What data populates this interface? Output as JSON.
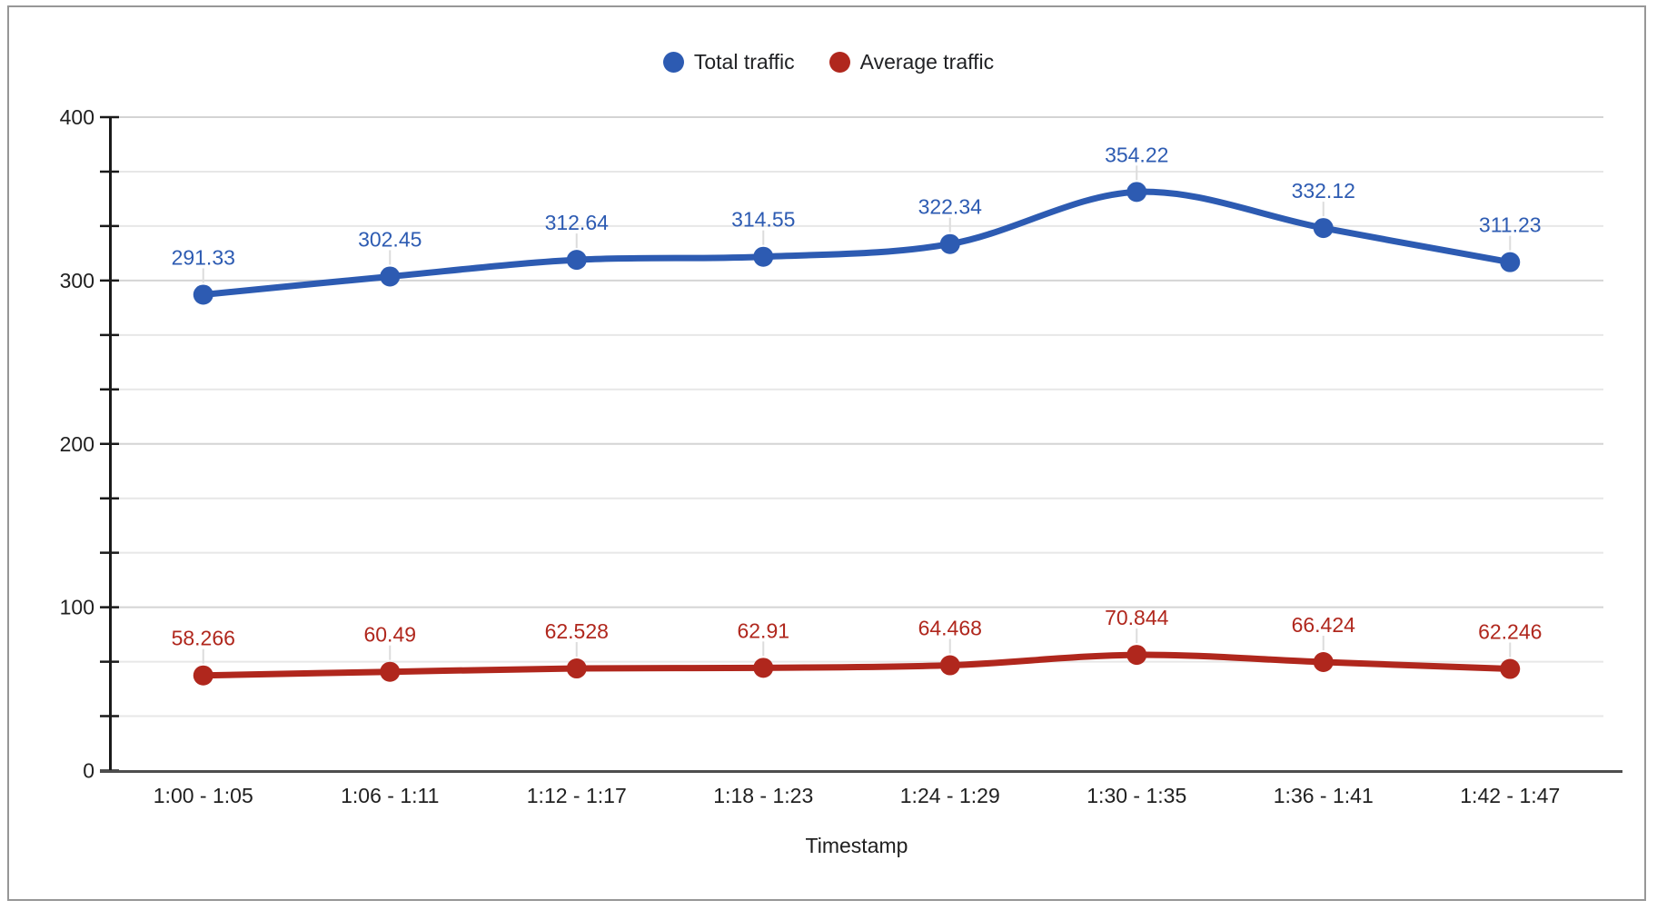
{
  "chart_data": {
    "type": "line",
    "title": "",
    "xlabel": "Timestamp",
    "ylabel": "",
    "categories": [
      "1:00 - 1:05",
      "1:06 - 1:11",
      "1:12 - 1:17",
      "1:18 - 1:23",
      "1:24 - 1:29",
      "1:30 - 1:35",
      "1:36 - 1:41",
      "1:42 - 1:47"
    ],
    "series": [
      {
        "name": "Total traffic",
        "color": "#2d5bb2",
        "values": [
          291.33,
          302.45,
          312.64,
          314.55,
          322.34,
          354.22,
          332.12,
          311.23
        ]
      },
      {
        "name": "Average traffic",
        "color": "#b0271d",
        "values": [
          58.266,
          60.49,
          62.528,
          62.91,
          64.468,
          70.844,
          66.424,
          62.246
        ]
      }
    ],
    "ylim": [
      0,
      400
    ],
    "y_major_ticks": [
      0,
      100,
      200,
      300,
      400
    ],
    "y_minor_divisions_per_major": 3,
    "grid": true,
    "smooth": true,
    "point_labels": true,
    "legend_position": "top"
  }
}
